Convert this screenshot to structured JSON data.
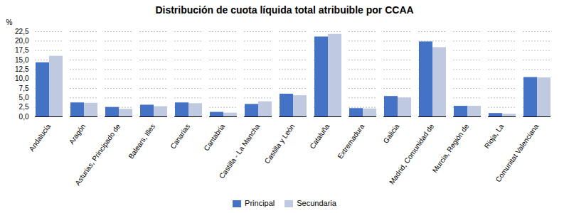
{
  "chart_data": {
    "type": "bar",
    "title": "Distribución de cuota líquida total atribuible por CCAA",
    "categories": [
      "Andalucía",
      "Aragón",
      "Asturias, Principado de",
      "Balears, Illes",
      "Canarias",
      "Cantabria",
      "Castilla - La Mancha",
      "Castilla y León",
      "Cataluña",
      "Extremadura",
      "Galicia",
      "Madrid, Comunidad de",
      "Murcia, Región de",
      "Rioja, La",
      "Comunitat Valenciana"
    ],
    "series": [
      {
        "name": "Principal",
        "color": "#4472C4",
        "values": [
          14.3,
          3.7,
          2.5,
          3.1,
          3.7,
          1.2,
          3.3,
          6.0,
          21.1,
          2.2,
          5.4,
          19.8,
          2.8,
          0.9,
          10.4
        ]
      },
      {
        "name": "Secundaria",
        "color": "#BFC9E0",
        "values": [
          16.0,
          3.6,
          2.0,
          2.7,
          3.5,
          1.0,
          4.0,
          5.6,
          21.8,
          2.1,
          5.0,
          18.3,
          2.8,
          0.7,
          10.3
        ]
      }
    ],
    "ylabel": "%",
    "ylim": [
      0,
      22.5
    ],
    "yticks": [
      {
        "value": 0.0,
        "label": "0,0"
      },
      {
        "value": 2.5,
        "label": "2,5"
      },
      {
        "value": 5.0,
        "label": "5,0"
      },
      {
        "value": 7.5,
        "label": "7,5"
      },
      {
        "value": 10.0,
        "label": "10,0"
      },
      {
        "value": 12.5,
        "label": "12,5"
      },
      {
        "value": 15.0,
        "label": "15,0"
      },
      {
        "value": 17.5,
        "label": "17,5"
      },
      {
        "value": 20.0,
        "label": "20,0"
      },
      {
        "value": 22.5,
        "label": "22,5"
      }
    ],
    "grid": true,
    "legend": "bottom"
  }
}
